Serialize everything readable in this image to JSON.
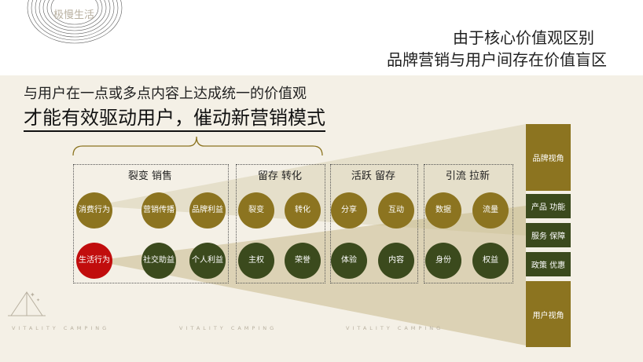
{
  "logo": {
    "text": "极慢生活"
  },
  "header": {
    "title_line1": "由于核心价值观区别",
    "title_line2": "品牌营销与用户间存在价值盲区"
  },
  "intro": {
    "line1": "与用户在一点或多点内容上达成统一的价值观",
    "line2": "才能有效驱动用户，催动新营销模式"
  },
  "groups": [
    {
      "title": "裂变 销售"
    },
    {
      "title": "留存 转化"
    },
    {
      "title": "活跃 留存"
    },
    {
      "title": "引流 拉新"
    }
  ],
  "circles": {
    "top": [
      "消费行为",
      "营销传播",
      "品牌利益",
      "裂变",
      "转化",
      "分享",
      "互动",
      "数据",
      "流量"
    ],
    "bottom": [
      "生活行为",
      "社交助益",
      "个人利益",
      "主权",
      "荣誉",
      "体验",
      "内容",
      "身份",
      "权益"
    ]
  },
  "right_column": {
    "brand_view": "品牌视角",
    "product": "产品 功能",
    "service": "服务 保障",
    "policy": "政策 优惠",
    "user_view": "用户视角"
  },
  "footer": {
    "watermark": "VITALITY CAMPING"
  },
  "colors": {
    "gold": "#8c7420",
    "green": "#3b4a1d",
    "red": "#c10d0d",
    "band": "#f4f0e6"
  }
}
